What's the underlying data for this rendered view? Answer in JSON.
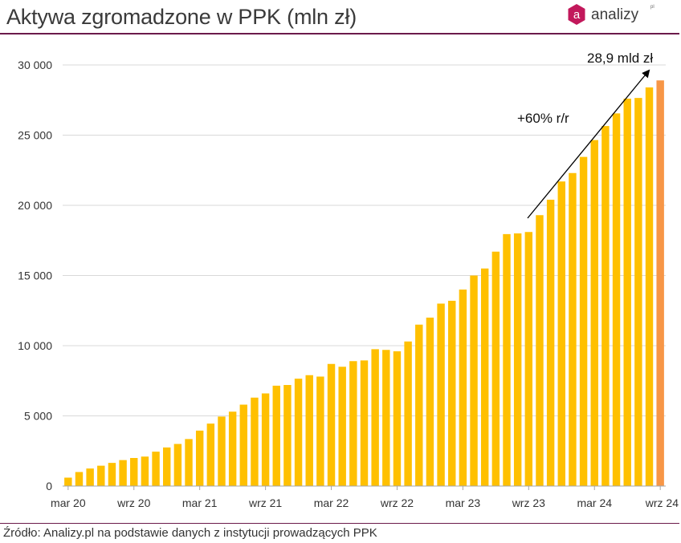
{
  "title": "Aktywa zgromadzone w PPK (mln zł)",
  "source": "Źródło: Analizy.pl na podstawie danych z instytucji prowadzących PPK",
  "logo": {
    "text": "analizy",
    "suffix": "pl",
    "badge_letter": "a",
    "badge_color": "#c2185b"
  },
  "colors": {
    "bar": "#ffc000",
    "highlight": "#f79646",
    "axis": "#a6a6a6",
    "grid": "#d9d9d9",
    "frame": "#6b1a4b"
  },
  "chart_data": {
    "type": "bar",
    "ylim": [
      0,
      30000
    ],
    "yticks": [
      0,
      5000,
      10000,
      15000,
      20000,
      25000,
      30000
    ],
    "ytick_labels": [
      "0",
      "5 000",
      "10 000",
      "15 000",
      "20 000",
      "25 000",
      "30 000"
    ],
    "xtick_labels": [
      {
        "label": "mar 20",
        "index": 0
      },
      {
        "label": "wrz 20",
        "index": 6
      },
      {
        "label": "mar 21",
        "index": 12
      },
      {
        "label": "wrz 21",
        "index": 18
      },
      {
        "label": "mar 22",
        "index": 24
      },
      {
        "label": "wrz 22",
        "index": 30
      },
      {
        "label": "mar 23",
        "index": 36
      },
      {
        "label": "wrz 23",
        "index": 42
      },
      {
        "label": "mar 24",
        "index": 48
      },
      {
        "label": "wrz 24",
        "index": 54
      }
    ],
    "values": [
      600,
      1000,
      1250,
      1450,
      1650,
      1850,
      2000,
      2100,
      2450,
      2750,
      3000,
      3350,
      3950,
      4450,
      4950,
      5300,
      5800,
      6300,
      6600,
      7150,
      7200,
      7650,
      7900,
      7800,
      8700,
      8500,
      8900,
      8950,
      9750,
      9700,
      9600,
      10300,
      11500,
      12000,
      13000,
      13200,
      14000,
      15000,
      15500,
      16700,
      17950,
      18000,
      18100,
      19300,
      20400,
      21700,
      22300,
      23450,
      24650,
      25650,
      26550,
      27600,
      27650,
      28400,
      28900
    ],
    "highlight_index": 54,
    "annotations": [
      {
        "text": "28,9 mld zł"
      },
      {
        "text": "+60% r/r"
      }
    ]
  }
}
